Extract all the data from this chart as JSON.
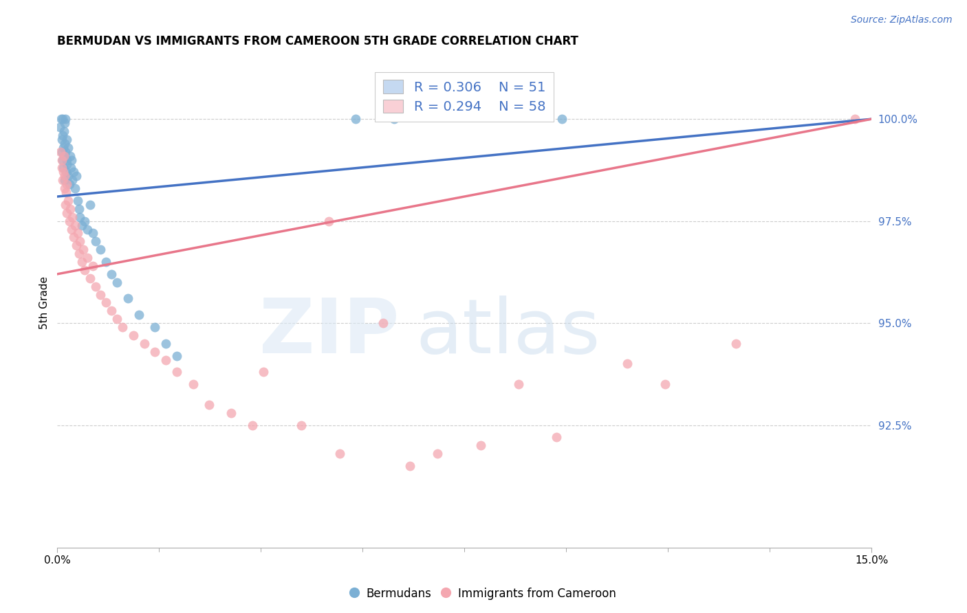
{
  "title": "BERMUDAN VS IMMIGRANTS FROM CAMEROON 5TH GRADE CORRELATION CHART",
  "source": "Source: ZipAtlas.com",
  "ylabel": "5th Grade",
  "xmin": 0.0,
  "xmax": 15.0,
  "ymin": 89.5,
  "ymax": 101.5,
  "ytick_vals": [
    100.0,
    97.5,
    95.0,
    92.5
  ],
  "ytick_labels": [
    "100.0%",
    "97.5%",
    "95.0%",
    "92.5%"
  ],
  "xtick_vals": [
    0.0,
    15.0
  ],
  "xtick_labels": [
    "0.0%",
    "15.0%"
  ],
  "bermudan_R": 0.306,
  "bermudan_N": 51,
  "cameroon_R": 0.294,
  "cameroon_N": 58,
  "bermudan_color": "#7bafd4",
  "cameroon_color": "#f4a7b0",
  "bermudan_line_color": "#4472c4",
  "cameroon_line_color": "#e8768a",
  "legend_blue_fill": "#c5d9f1",
  "legend_pink_fill": "#f9d0d6",
  "bermudan_line_x0": 0.0,
  "bermudan_line_y0": 98.1,
  "bermudan_line_x1": 15.0,
  "bermudan_line_y1": 100.0,
  "cameroon_line_x0": 0.0,
  "cameroon_line_y0": 96.2,
  "cameroon_line_x1": 15.0,
  "cameroon_line_y1": 100.0,
  "bermudan_x": [
    0.05,
    0.07,
    0.08,
    0.09,
    0.1,
    0.1,
    0.1,
    0.11,
    0.11,
    0.12,
    0.12,
    0.13,
    0.13,
    0.14,
    0.15,
    0.15,
    0.16,
    0.17,
    0.17,
    0.18,
    0.2,
    0.2,
    0.22,
    0.24,
    0.25,
    0.26,
    0.28,
    0.3,
    0.32,
    0.35,
    0.38,
    0.4,
    0.42,
    0.45,
    0.5,
    0.55,
    0.6,
    0.65,
    0.7,
    0.8,
    0.9,
    1.0,
    1.1,
    1.3,
    1.5,
    1.8,
    2.0,
    2.2,
    5.5,
    6.2,
    9.3
  ],
  "bermudan_y": [
    99.8,
    100.0,
    99.5,
    99.2,
    99.0,
    99.6,
    100.0,
    99.3,
    98.8,
    99.1,
    99.7,
    98.5,
    99.4,
    99.9,
    100.0,
    99.2,
    98.7,
    99.0,
    99.5,
    98.9,
    99.3,
    98.6,
    98.4,
    99.1,
    98.8,
    99.0,
    98.5,
    98.7,
    98.3,
    98.6,
    98.0,
    97.8,
    97.6,
    97.4,
    97.5,
    97.3,
    97.9,
    97.2,
    97.0,
    96.8,
    96.5,
    96.2,
    96.0,
    95.6,
    95.2,
    94.9,
    94.5,
    94.2,
    100.0,
    100.0,
    100.0
  ],
  "cameroon_x": [
    0.06,
    0.08,
    0.09,
    0.1,
    0.11,
    0.12,
    0.13,
    0.14,
    0.15,
    0.16,
    0.17,
    0.18,
    0.2,
    0.22,
    0.24,
    0.26,
    0.28,
    0.3,
    0.32,
    0.35,
    0.38,
    0.4,
    0.42,
    0.45,
    0.48,
    0.5,
    0.55,
    0.6,
    0.65,
    0.7,
    0.8,
    0.9,
    1.0,
    1.1,
    1.2,
    1.4,
    1.6,
    1.8,
    2.0,
    2.2,
    2.5,
    2.8,
    3.2,
    3.6,
    3.8,
    4.5,
    5.2,
    6.5,
    7.0,
    7.8,
    8.5,
    9.2,
    10.5,
    11.2,
    12.5,
    14.7,
    5.0,
    6.0
  ],
  "cameroon_y": [
    99.2,
    98.8,
    99.0,
    98.5,
    98.7,
    99.1,
    98.3,
    98.6,
    97.9,
    98.2,
    98.4,
    97.7,
    98.0,
    97.5,
    97.8,
    97.3,
    97.6,
    97.1,
    97.4,
    96.9,
    97.2,
    96.7,
    97.0,
    96.5,
    96.8,
    96.3,
    96.6,
    96.1,
    96.4,
    95.9,
    95.7,
    95.5,
    95.3,
    95.1,
    94.9,
    94.7,
    94.5,
    94.3,
    94.1,
    93.8,
    93.5,
    93.0,
    92.8,
    92.5,
    93.8,
    92.5,
    91.8,
    91.5,
    91.8,
    92.0,
    93.5,
    92.2,
    94.0,
    93.5,
    94.5,
    100.0,
    97.5,
    95.0
  ]
}
